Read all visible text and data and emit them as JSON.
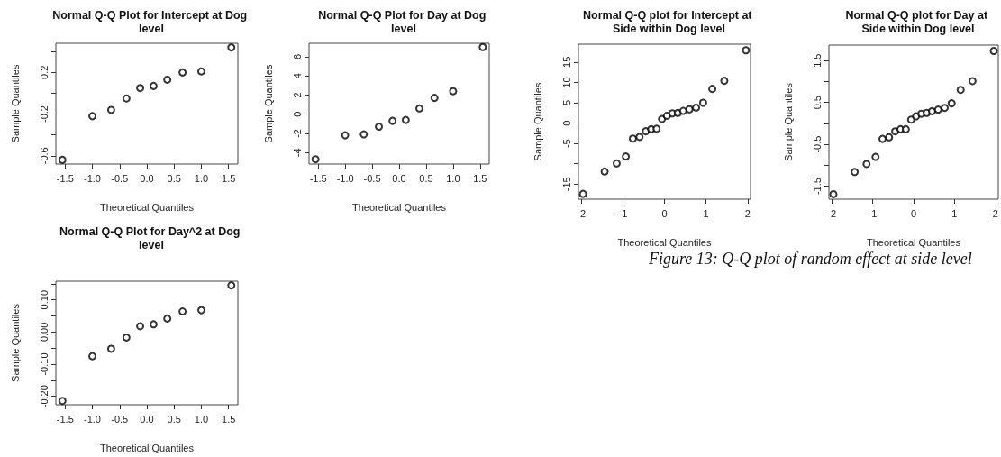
{
  "chart_data": [
    {
      "type": "scatter",
      "title": "Normal Q-Q Plot for Intercept at Dog level",
      "xlabel": "Theoretical Quantiles",
      "ylabel": "Sample Quantiles",
      "marker": "circle",
      "grid": false,
      "x": [
        -1.55,
        -1.0,
        -0.655,
        -0.375,
        -0.123,
        0.123,
        0.375,
        0.655,
        1.0,
        1.55
      ],
      "series": [
        {
          "color": "#000000",
          "values": [
            -0.64,
            -0.22,
            -0.16,
            -0.05,
            0.05,
            0.07,
            0.13,
            0.2,
            0.21,
            0.44
          ]
        }
      ],
      "xlim": [
        -1.67,
        1.67
      ],
      "xticks": [
        {
          "value": -1.5,
          "label": "-1.5"
        },
        {
          "value": -1,
          "label": "-1.0"
        },
        {
          "value": -0.5,
          "label": "-0.5"
        },
        {
          "value": 0,
          "label": "0.0"
        },
        {
          "value": 0.5,
          "label": "0.5"
        },
        {
          "value": 1,
          "label": "1.0"
        },
        {
          "value": 1.5,
          "label": "1.5"
        }
      ],
      "ylim": [
        -0.68,
        0.48
      ],
      "yticks": [
        {
          "value": -0.6,
          "label": "-0.6"
        },
        {
          "value": -0.4,
          "label": null
        },
        {
          "value": -0.2,
          "label": "-0.2"
        },
        {
          "value": 0,
          "label": null
        },
        {
          "value": 0.2,
          "label": "0.2"
        },
        {
          "value": 0.4,
          "label": null
        }
      ]
    },
    {
      "type": "scatter",
      "title": "Normal Q-Q Plot for Day at Dog level",
      "xlabel": "Theoretical Quantiles",
      "ylabel": "Sample Quantiles",
      "marker": "circle",
      "grid": false,
      "x": [
        -1.55,
        -1.0,
        -0.655,
        -0.375,
        -0.123,
        0.123,
        0.375,
        0.655,
        1.0,
        1.55
      ],
      "series": [
        {
          "color": "#000000",
          "values": [
            -4.7,
            -2.2,
            -2.1,
            -1.3,
            -0.7,
            -0.6,
            0.6,
            1.7,
            2.4,
            7.0
          ]
        }
      ],
      "xlim": [
        -1.67,
        1.67
      ],
      "xticks": [
        {
          "value": -1.5,
          "label": "-1.5"
        },
        {
          "value": -1,
          "label": "-1.0"
        },
        {
          "value": -0.5,
          "label": "-0.5"
        },
        {
          "value": 0,
          "label": "0.0"
        },
        {
          "value": 0.5,
          "label": "0.5"
        },
        {
          "value": 1,
          "label": "1.0"
        },
        {
          "value": 1.5,
          "label": "1.5"
        }
      ],
      "ylim": [
        -5.2,
        7.4
      ],
      "yticks": [
        -4,
        -2,
        0,
        2,
        4,
        6
      ]
    },
    {
      "type": "scatter",
      "title": "Normal Q-Q plot for Intercept at Side within Dog level",
      "xlabel": "Theoretical Quantiles",
      "ylabel": "Sample Quantiles",
      "marker": "circle",
      "grid": false,
      "x": [
        -1.96,
        -1.44,
        -1.15,
        -0.93,
        -0.76,
        -0.6,
        -0.45,
        -0.32,
        -0.19,
        -0.06,
        0.06,
        0.19,
        0.32,
        0.45,
        0.6,
        0.76,
        0.93,
        1.15,
        1.44,
        1.96
      ],
      "series": [
        {
          "color": "#000000",
          "values": [
            -17.4,
            -11.9,
            -9.9,
            -8.2,
            -3.8,
            -3.4,
            -2.0,
            -1.5,
            -1.4,
            1.0,
            1.8,
            2.4,
            2.5,
            3.0,
            3.4,
            3.8,
            5.0,
            8.4,
            10.4,
            17.9
          ]
        }
      ],
      "xlim": [
        -2.07,
        2.07
      ],
      "xticks": [
        -2,
        -1,
        0,
        1,
        2
      ],
      "ylim": [
        -18.7,
        19.4
      ],
      "yticks": [
        {
          "value": -15,
          "label": "-15"
        },
        {
          "value": -10,
          "label": null
        },
        {
          "value": -5,
          "label": "-5"
        },
        {
          "value": 0,
          "label": "0"
        },
        {
          "value": 5,
          "label": "5"
        },
        {
          "value": 10,
          "label": "10"
        },
        {
          "value": 15,
          "label": "15"
        }
      ],
      "annotations": [
        "Figure 13: Q-Q plot of random effect at side level"
      ]
    },
    {
      "type": "scatter",
      "title": "Normal Q-Q plot for Day at Side within Dog level",
      "xlabel": "Theoretical Quantiles",
      "ylabel": "Sample Quantiles",
      "marker": "circle",
      "grid": false,
      "x": [
        -1.96,
        -1.44,
        -1.15,
        -0.93,
        -0.76,
        -0.6,
        -0.45,
        -0.32,
        -0.19,
        -0.06,
        0.06,
        0.19,
        0.32,
        0.45,
        0.6,
        0.76,
        0.93,
        1.15,
        1.44,
        1.96
      ],
      "series": [
        {
          "color": "#000000",
          "values": [
            -1.69,
            -1.16,
            -0.97,
            -0.8,
            -0.37,
            -0.33,
            -0.19,
            -0.14,
            -0.14,
            0.09,
            0.17,
            0.23,
            0.25,
            0.29,
            0.33,
            0.37,
            0.48,
            0.8,
            1.01,
            1.73
          ]
        }
      ],
      "xlim": [
        -2.07,
        2.07
      ],
      "xticks": [
        -2,
        -1,
        0,
        1,
        2
      ],
      "ylim": [
        -1.81,
        1.87
      ],
      "yticks": [
        {
          "value": -1.5,
          "label": "-1.5"
        },
        {
          "value": -1,
          "label": null
        },
        {
          "value": -0.5,
          "label": "-0.5"
        },
        {
          "value": 0,
          "label": null
        },
        {
          "value": 0.5,
          "label": "0.5"
        },
        {
          "value": 1,
          "label": null
        },
        {
          "value": 1.5,
          "label": "1.5"
        }
      ]
    },
    {
      "type": "scatter",
      "title": "Normal Q-Q Plot for Day^2 at Dog level",
      "xlabel": "Theoretical Quantiles",
      "ylabel": "Sample Quantiles",
      "marker": "circle",
      "grid": false,
      "x": [
        -1.55,
        -1.0,
        -0.655,
        -0.375,
        -0.123,
        0.123,
        0.375,
        0.655,
        1.0,
        1.55
      ],
      "series": [
        {
          "color": "#000000",
          "values": [
            -0.214,
            -0.075,
            -0.052,
            -0.017,
            0.018,
            0.024,
            0.042,
            0.064,
            0.068,
            0.145
          ]
        }
      ],
      "xlim": [
        -1.67,
        1.67
      ],
      "xticks": [
        {
          "value": -1.5,
          "label": "-1.5"
        },
        {
          "value": -1,
          "label": "-1.0"
        },
        {
          "value": -0.5,
          "label": "-0.5"
        },
        {
          "value": 0,
          "label": "0.0"
        },
        {
          "value": 0.5,
          "label": "0.5"
        },
        {
          "value": 1,
          "label": "1.0"
        },
        {
          "value": 1.5,
          "label": "1.5"
        }
      ],
      "ylim": [
        -0.226,
        0.158
      ],
      "yticks": [
        {
          "value": -0.2,
          "label": "-0.20"
        },
        {
          "value": -0.15,
          "label": null
        },
        {
          "value": -0.1,
          "label": "-0.10"
        },
        {
          "value": -0.05,
          "label": null
        },
        {
          "value": 0,
          "label": "0.00"
        },
        {
          "value": 0.05,
          "label": null
        },
        {
          "value": 0.1,
          "label": "0.10"
        },
        {
          "value": 0.15,
          "label": null
        }
      ]
    }
  ]
}
